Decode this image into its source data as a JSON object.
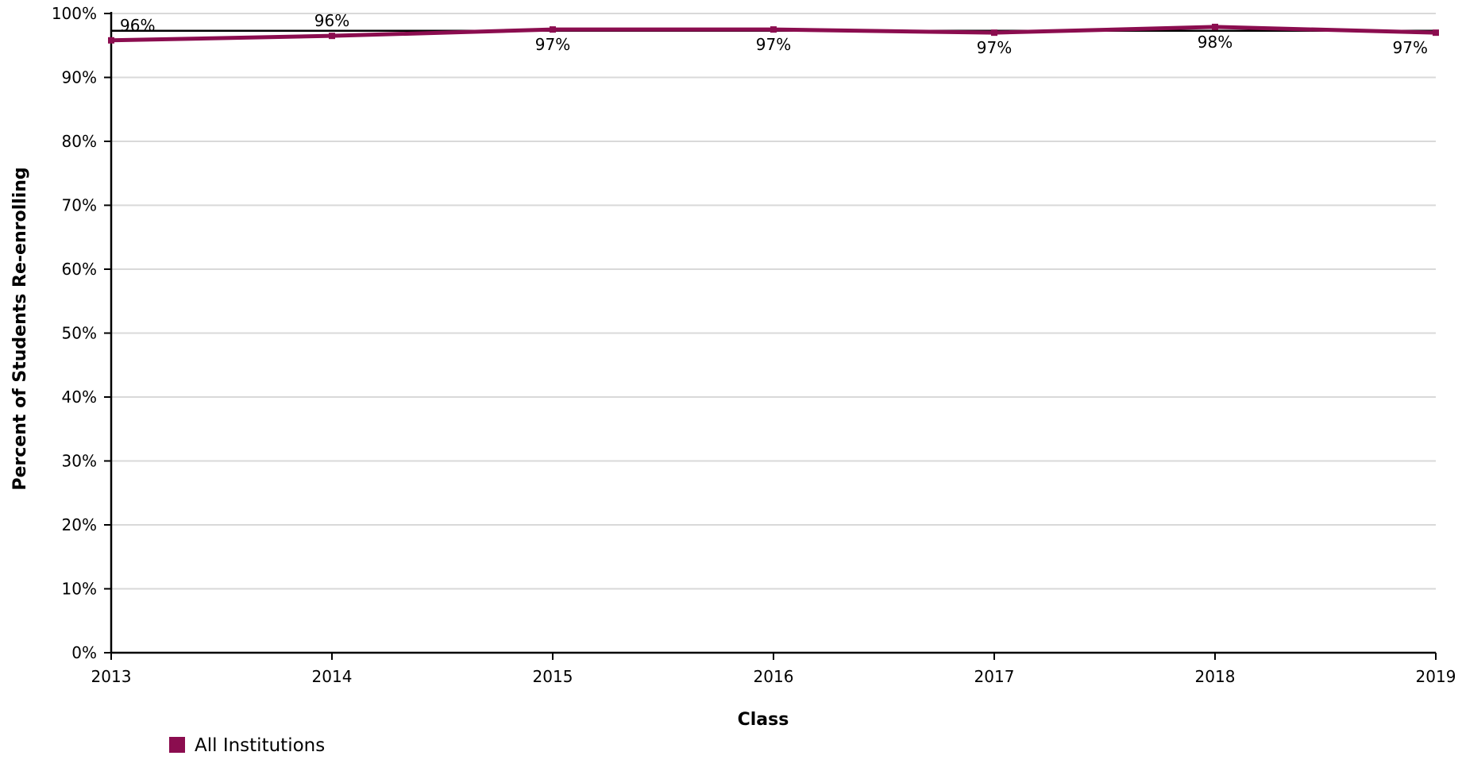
{
  "chart_data": {
    "type": "line",
    "title": "",
    "xlabel": "Class",
    "ylabel": "Percent of Students Re-enrolling",
    "x": [
      2013,
      2014,
      2015,
      2016,
      2017,
      2018,
      2019
    ],
    "x_tick_labels": [
      "2013",
      "2014",
      "2015",
      "2016",
      "2017",
      "2018",
      "2019"
    ],
    "y_tick_labels": [
      "0%",
      "10%",
      "20%",
      "30%",
      "40%",
      "50%",
      "60%",
      "70%",
      "80%",
      "90%",
      "100%"
    ],
    "ylim": [
      0,
      100
    ],
    "xlim": [
      2013,
      2019
    ],
    "grid": true,
    "legend_placement": "bottom-left",
    "series": [
      {
        "name": "All Institutions",
        "color": "#8B0D4F",
        "values": [
          95.8,
          96.5,
          97.5,
          97.5,
          97.0,
          97.9,
          97.0
        ],
        "data_labels": [
          "96%",
          "96%",
          "97%",
          "97%",
          "97%",
          "98%",
          "97%"
        ]
      }
    ],
    "reference_line": {
      "value": 97.3,
      "color": "#000000"
    }
  }
}
